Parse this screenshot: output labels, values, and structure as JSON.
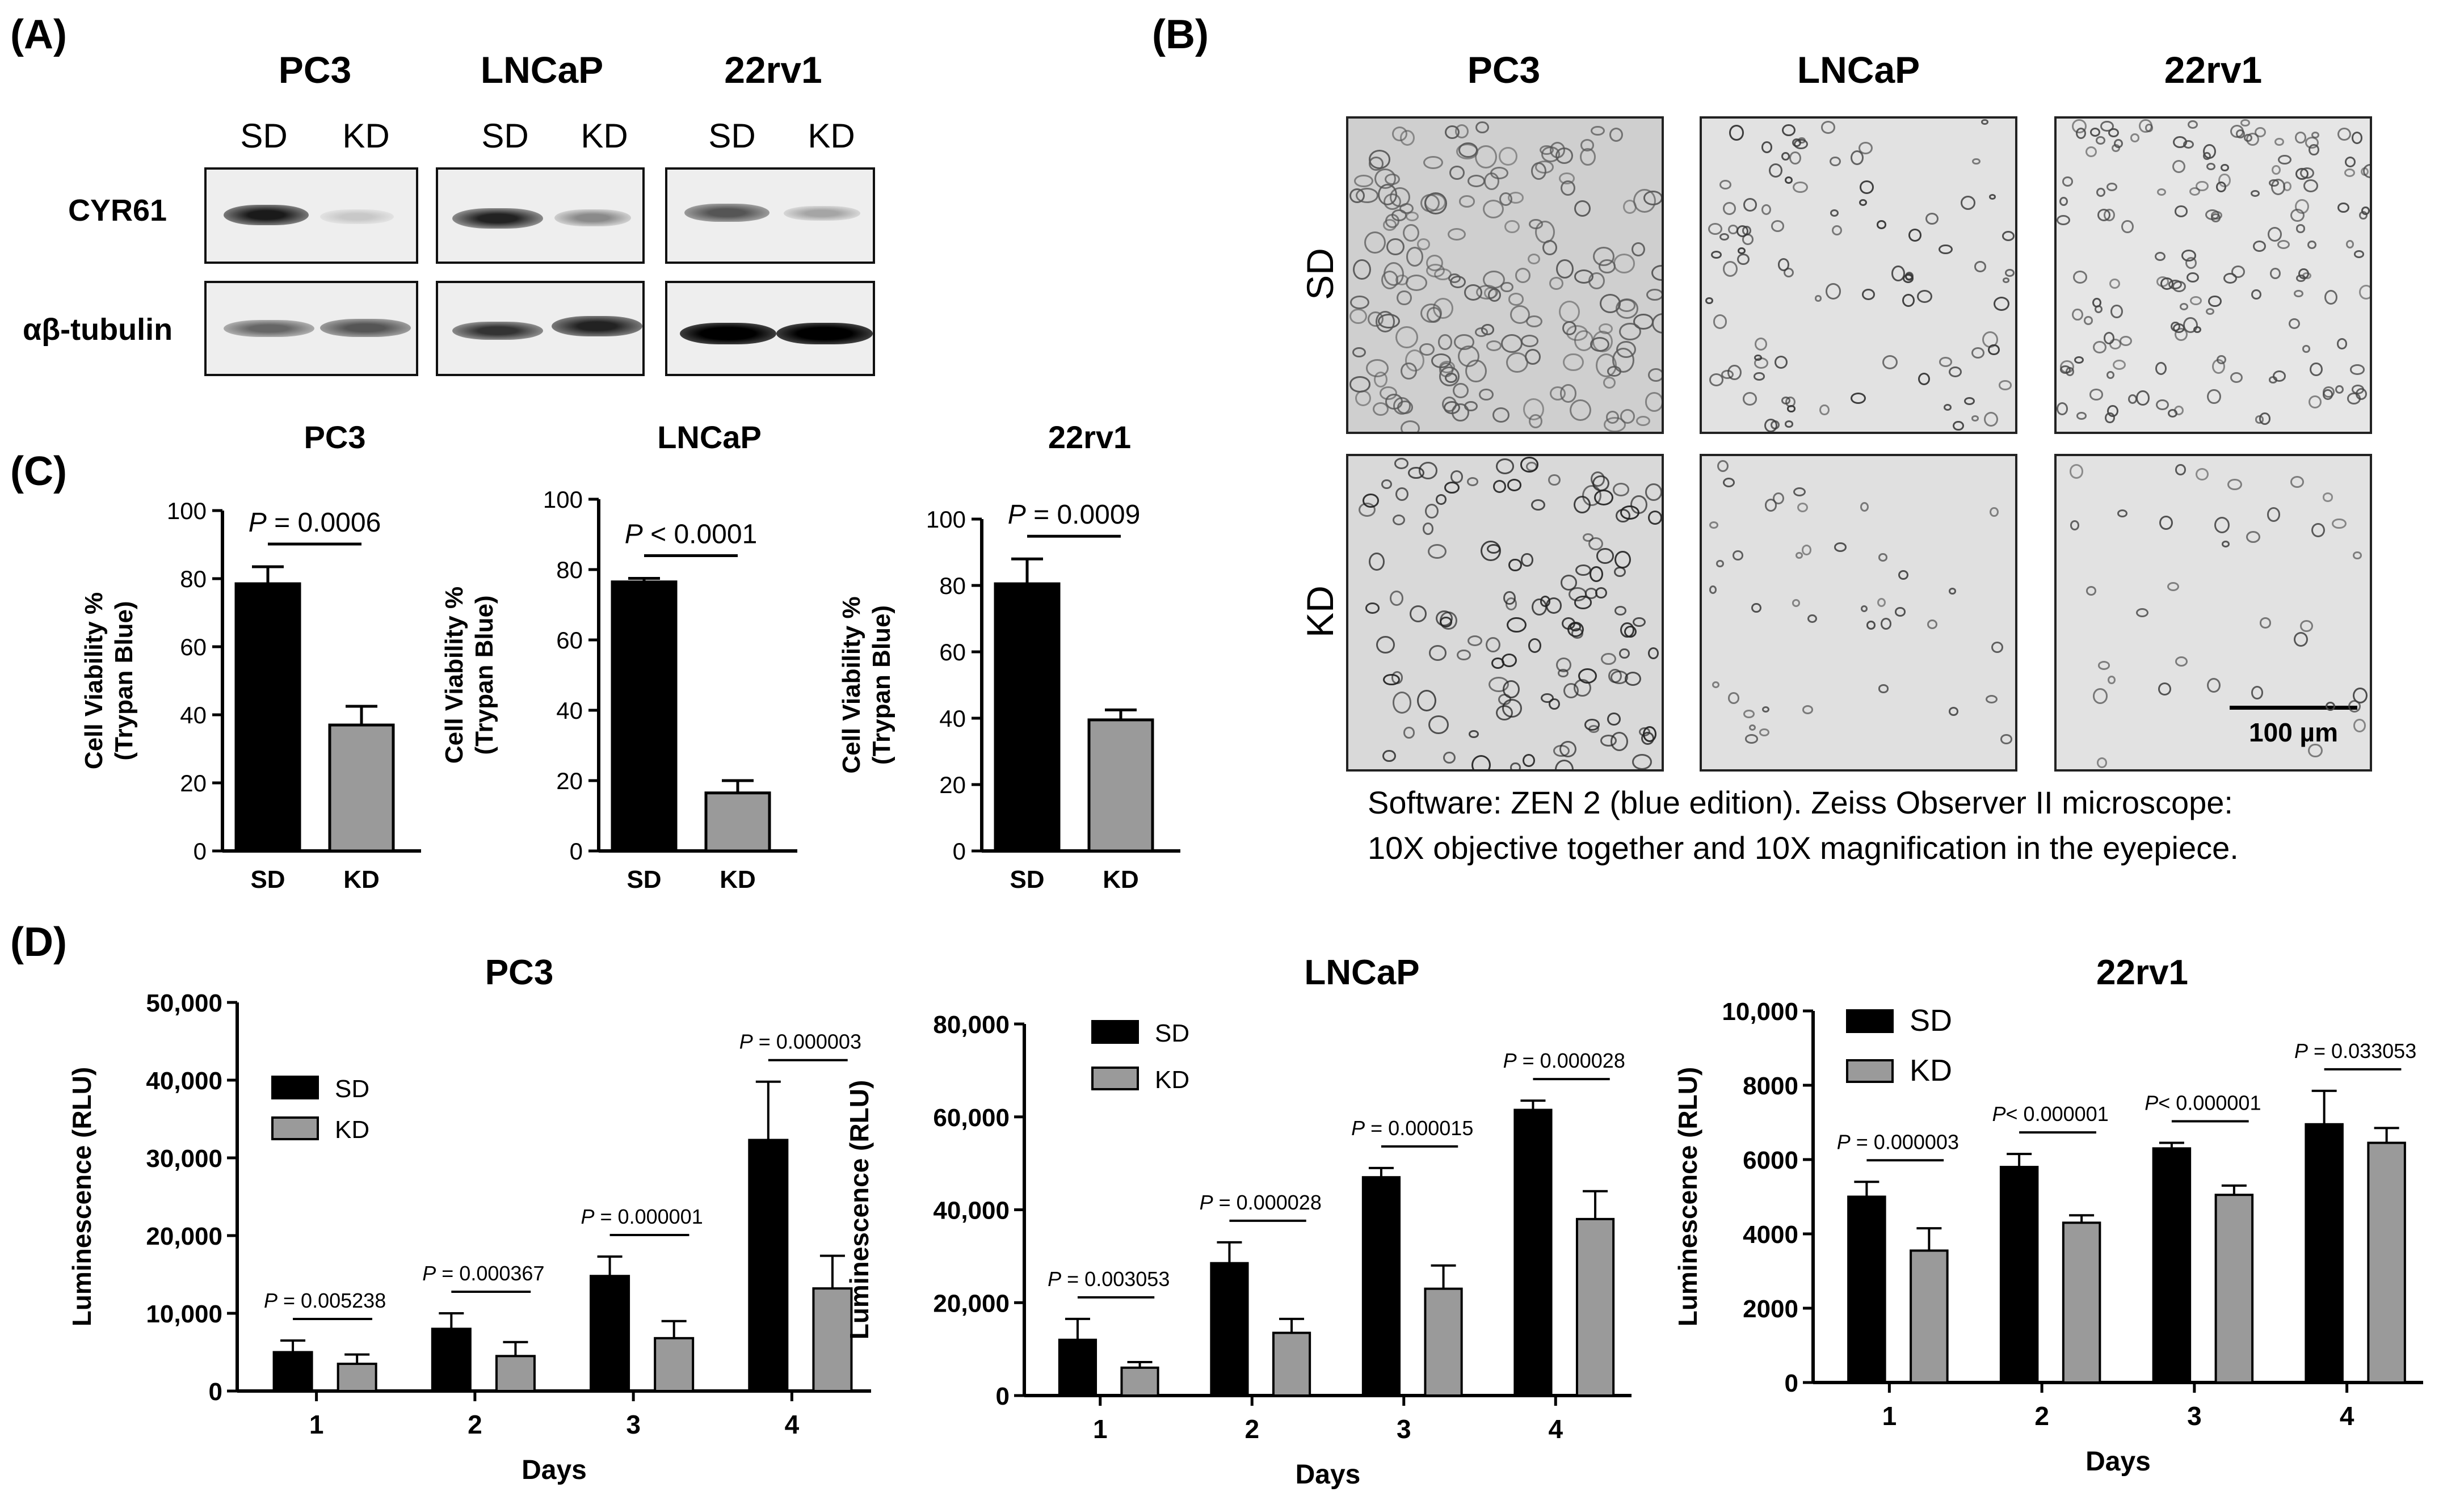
{
  "panels": {
    "a": "(A)",
    "b": "(B)",
    "c": "(C)",
    "d": "(D)"
  },
  "western": {
    "cell_lines": [
      "PC3",
      "LNCaP",
      "22rv1"
    ],
    "lanes": [
      "SD",
      "KD"
    ],
    "rows": [
      "CYR61",
      "αβ-tubulin"
    ]
  },
  "microscopy": {
    "cell_lines": [
      "PC3",
      "LNCaP",
      "22rv1"
    ],
    "rows": [
      "SD",
      "KD"
    ],
    "scale_bar": "100 µm",
    "caption_line1": "Software: ZEN 2 (blue edition). Zeiss Observer II microscope:",
    "caption_line2": "10X objective together and 10X magnification in the eyepiece."
  },
  "colors": {
    "sd_bar": "#000000",
    "kd_bar": "#9a9a9a",
    "axis": "#000000"
  },
  "chart_data": [
    {
      "type": "bar",
      "title": "PC3",
      "ylabel": "Cell Viability %\n(Trypan Blue)",
      "categories": [
        "SD",
        "KD"
      ],
      "values": [
        78.5,
        37
      ],
      "errors": [
        5,
        5.5
      ],
      "ylim": [
        0,
        100
      ],
      "yticks": [
        "0",
        "20",
        "40",
        "60",
        "80",
        "100"
      ],
      "pvalue_prefix": "P",
      "pvalue_text": " = 0.0006"
    },
    {
      "type": "bar",
      "title": "LNCaP",
      "ylabel": "Cell Viability %\n(Trypan Blue)",
      "categories": [
        "SD",
        "KD"
      ],
      "values": [
        76.5,
        16.5
      ],
      "errors": [
        1,
        3.5
      ],
      "ylim": [
        0,
        100
      ],
      "yticks": [
        "0",
        "20",
        "40",
        "60",
        "80",
        "100"
      ],
      "pvalue_prefix": "P",
      "pvalue_text": " < 0.0001"
    },
    {
      "type": "bar",
      "title": "22rv1",
      "ylabel": "Cell Viability %\n(Trypan Blue)",
      "categories": [
        "SD",
        "KD"
      ],
      "values": [
        80.5,
        39.5
      ],
      "errors": [
        7.5,
        3
      ],
      "ylim": [
        0,
        100
      ],
      "yticks": [
        "0",
        "20",
        "40",
        "60",
        "80",
        "100"
      ],
      "pvalue_prefix": "P",
      "pvalue_text": " = 0.0009"
    },
    {
      "type": "bar",
      "title": "PC3",
      "xlabel": "Days",
      "ylabel": "Luminescence (RLU)",
      "categories": [
        "1",
        "2",
        "3",
        "4"
      ],
      "series": [
        {
          "name": "SD",
          "values": [
            5000,
            8000,
            14800,
            32300
          ],
          "errors": [
            1500,
            2000,
            2500,
            7500
          ]
        },
        {
          "name": "KD",
          "values": [
            3500,
            4500,
            6800,
            13200
          ],
          "errors": [
            1200,
            1800,
            2200,
            4200
          ]
        }
      ],
      "ylim": [
        0,
        50000
      ],
      "yticks": [
        "0",
        "10,000",
        "20,000",
        "30,000",
        "40,000",
        "50,000"
      ],
      "pvalues": [
        " = 0.005238",
        " = 0.000367",
        " = 0.000001",
        " = 0.000003"
      ],
      "legend": "left"
    },
    {
      "type": "bar",
      "title": "LNCaP",
      "xlabel": "Days",
      "ylabel": "Luminescence (RLU)",
      "categories": [
        "1",
        "2",
        "3",
        "4"
      ],
      "series": [
        {
          "name": "SD",
          "values": [
            12000,
            28500,
            47000,
            61500
          ],
          "errors": [
            4500,
            4500,
            2000,
            2000
          ]
        },
        {
          "name": "KD",
          "values": [
            6000,
            13500,
            23000,
            38000
          ],
          "errors": [
            1200,
            3000,
            5000,
            6000
          ]
        }
      ],
      "ylim": [
        0,
        80000
      ],
      "yticks": [
        "0",
        "20,000",
        "40,000",
        "60,000",
        "80,000"
      ],
      "pvalues": [
        " = 0.003053",
        " = 0.000028",
        " = 0.000015",
        " = 0.000028"
      ],
      "legend": "top-left"
    },
    {
      "type": "bar",
      "title": "22rv1",
      "xlabel": "Days",
      "ylabel": "Luminescence (RLU)",
      "categories": [
        "1",
        "2",
        "3",
        "4"
      ],
      "series": [
        {
          "name": "SD",
          "values": [
            5000,
            5800,
            6300,
            6950
          ],
          "errors": [
            400,
            350,
            150,
            900
          ]
        },
        {
          "name": "KD",
          "values": [
            3550,
            4300,
            5050,
            6450
          ],
          "errors": [
            600,
            200,
            250,
            400
          ]
        }
      ],
      "ylim": [
        0,
        10000
      ],
      "yticks": [
        "0",
        "2000",
        "4000",
        "6000",
        "8000",
        "10,000"
      ],
      "pvalues": [
        " = 0.000003",
        "< 0.000001",
        "< 0.000001",
        " = 0.033053"
      ],
      "legend": "top-left"
    }
  ]
}
